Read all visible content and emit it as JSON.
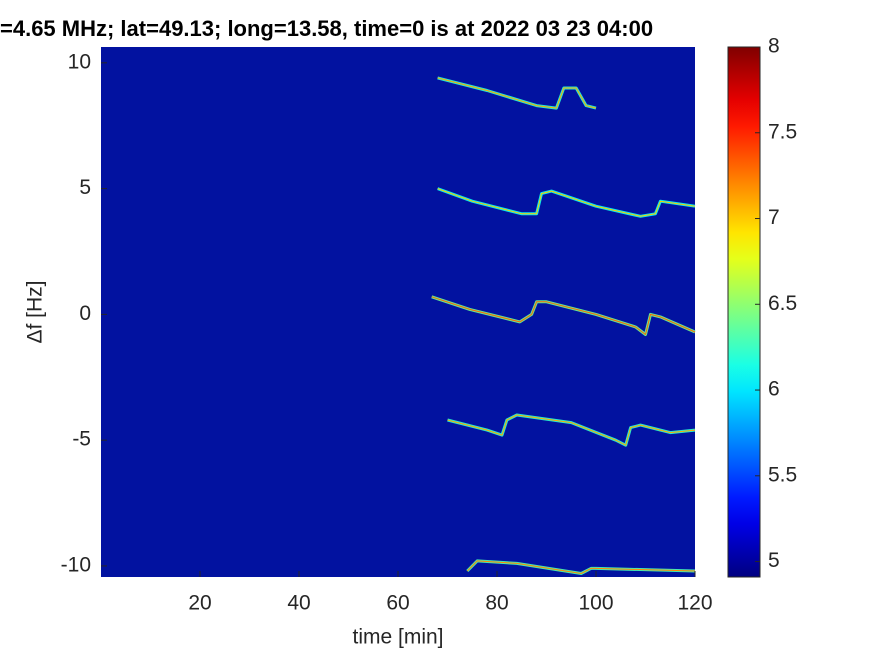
{
  "chart_data": {
    "type": "spectrogram",
    "title": "=4.65 MHz;  lat=49.13; long=13.58, time=0 is at 2022 03 23 04:00",
    "xlabel": "time [min]",
    "ylabel": "Δf [Hz]",
    "xlim": [
      0,
      120
    ],
    "xticks": [
      20,
      40,
      60,
      80,
      100,
      120
    ],
    "ylim": [
      -10.44,
      10.63
    ],
    "yticks": [
      -10,
      -5,
      0,
      5,
      10
    ],
    "colormap": "jet",
    "clim": [
      4.91,
      8
    ],
    "cticks": [
      5,
      5.5,
      6,
      6.5,
      7,
      7.5,
      8
    ],
    "background_color": "#0212a0",
    "traces": [
      {
        "level": 6.2,
        "x": [
          68,
          78,
          88,
          92,
          93.5,
          96,
          98,
          100
        ],
        "y": [
          9.4,
          8.9,
          8.3,
          8.2,
          9.0,
          9.0,
          8.3,
          8.2
        ]
      },
      {
        "level": 6.1,
        "x": [
          68,
          75,
          85,
          88,
          89,
          91,
          100,
          109,
          112,
          113,
          120
        ],
        "y": [
          5.0,
          4.5,
          4.0,
          4.0,
          4.8,
          4.9,
          4.3,
          3.9,
          4.0,
          4.5,
          4.3
        ]
      },
      {
        "level": 6.4,
        "x": [
          66.8,
          74.5,
          84.6,
          87,
          88,
          90,
          100,
          108,
          110,
          111,
          113,
          120
        ],
        "y": [
          0.7,
          0.2,
          -0.3,
          0,
          0.5,
          0.5,
          0,
          -0.5,
          -0.8,
          0,
          -0.1,
          -0.7
        ]
      },
      {
        "level": 6.2,
        "x": [
          70,
          78,
          81,
          82,
          84,
          95,
          104,
          106,
          107,
          109,
          115,
          120
        ],
        "y": [
          -4.2,
          -4.6,
          -4.8,
          -4.2,
          -4.0,
          -4.3,
          -5.0,
          -5.2,
          -4.5,
          -4.4,
          -4.7,
          -4.6
        ]
      },
      {
        "level": 6.3,
        "x": [
          74,
          76,
          84,
          97,
          99,
          100,
          120
        ],
        "y": [
          -10.2,
          -9.8,
          -9.9,
          -10.3,
          -10.1,
          -10.1,
          -10.2
        ]
      }
    ]
  }
}
